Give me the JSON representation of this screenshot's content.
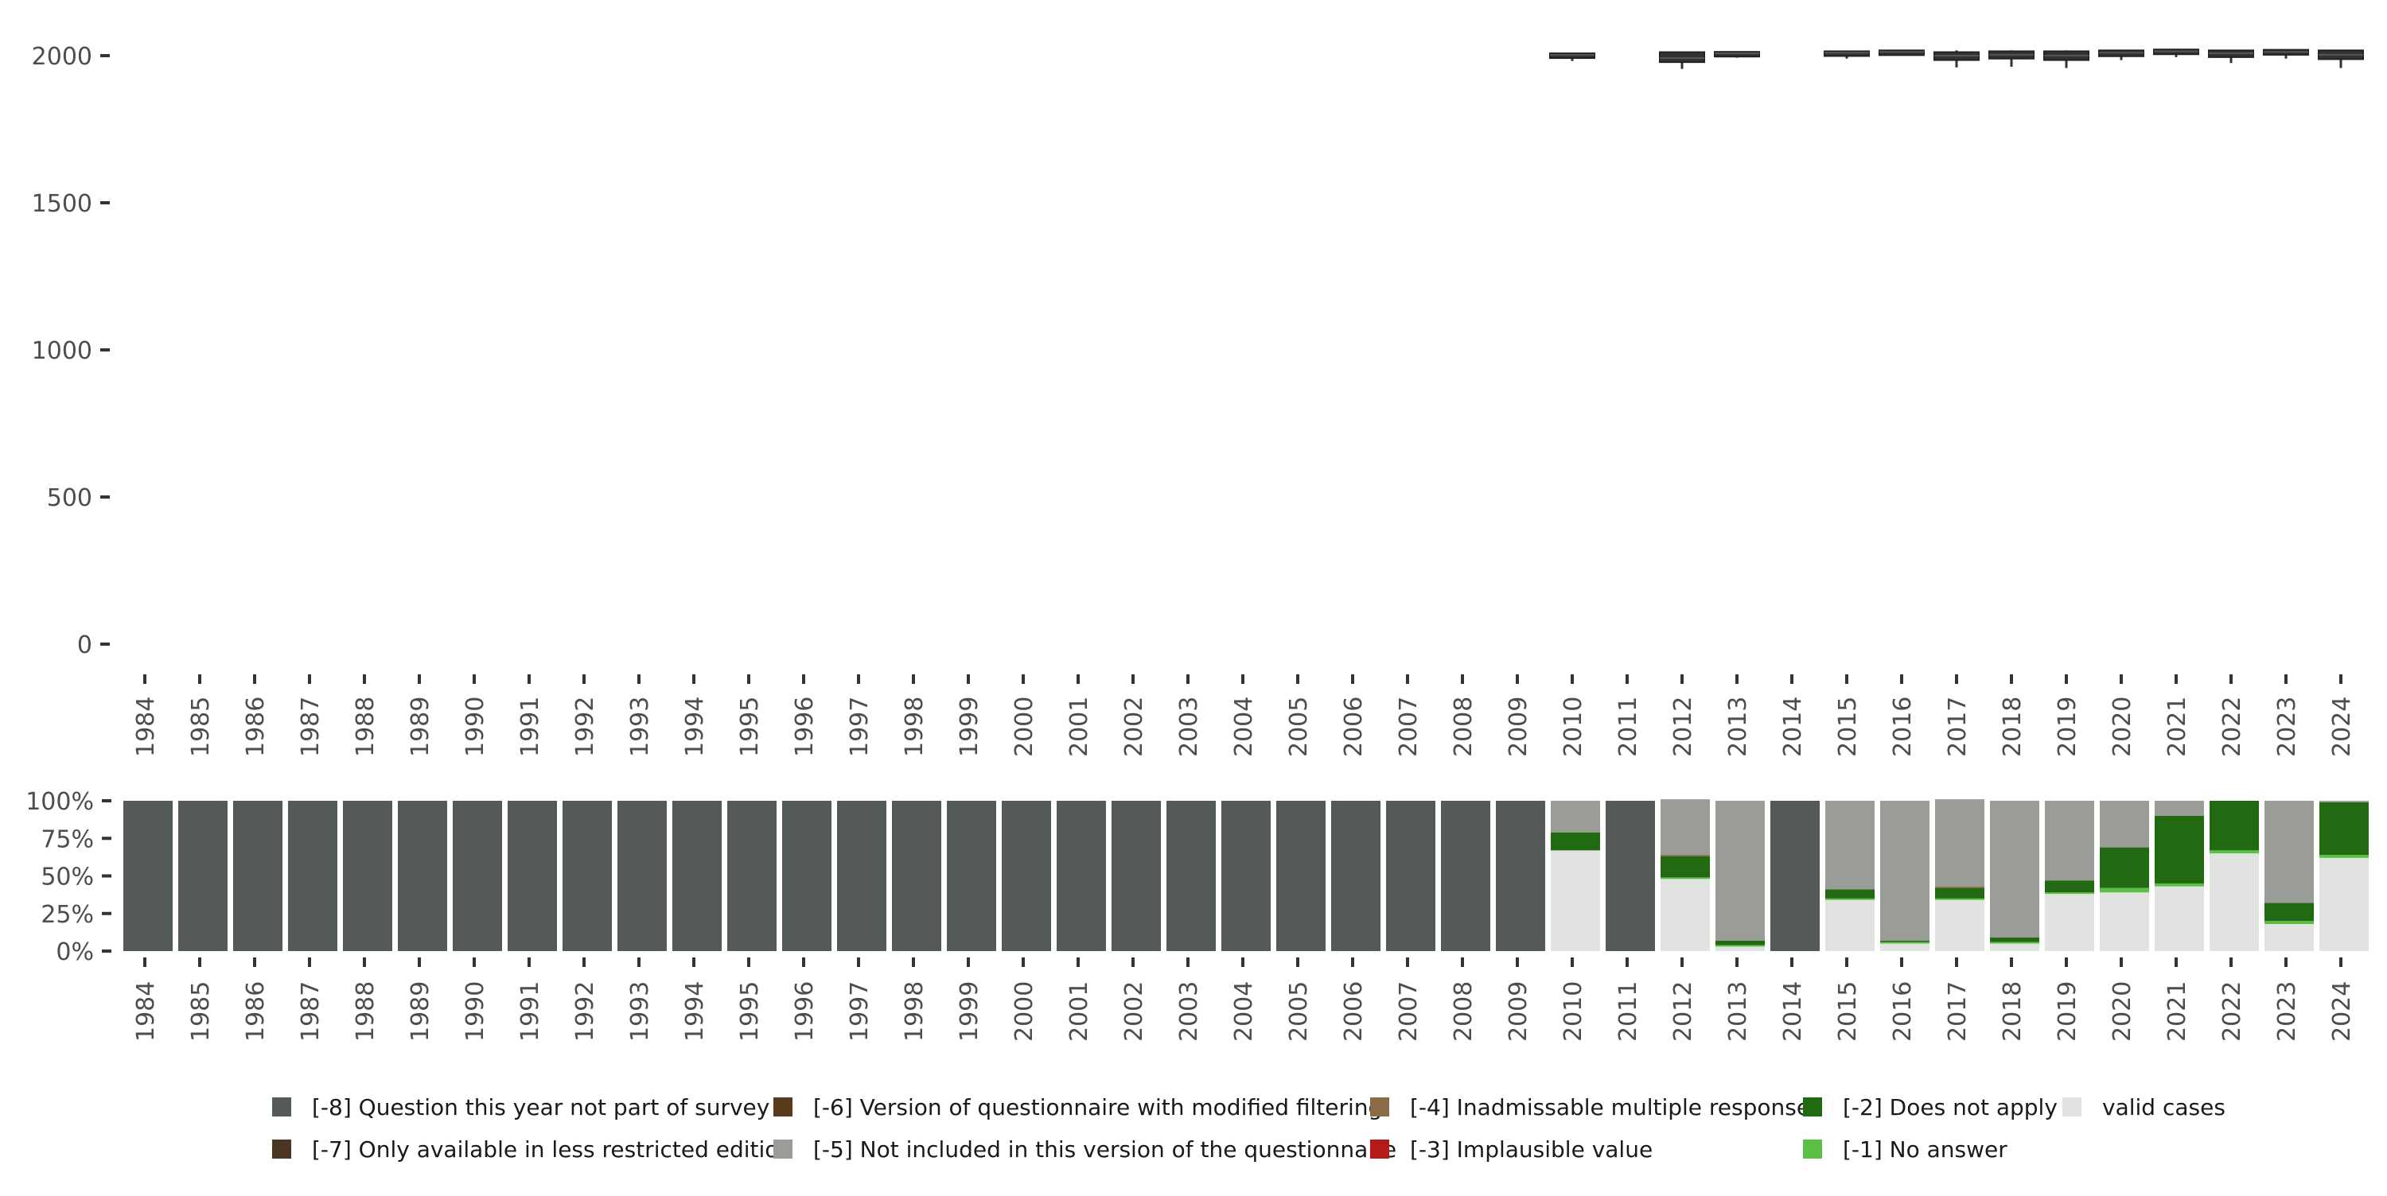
{
  "chart_data": [
    {
      "type": "boxplot",
      "title": "",
      "xlabel": "",
      "ylabel": "",
      "ylim": [
        -20,
        2050
      ],
      "yticks": [
        0,
        500,
        1000,
        1500,
        2000
      ],
      "categories": [
        "1984",
        "1985",
        "1986",
        "1987",
        "1988",
        "1989",
        "1990",
        "1991",
        "1992",
        "1993",
        "1994",
        "1995",
        "1996",
        "1997",
        "1998",
        "1999",
        "2000",
        "2001",
        "2002",
        "2003",
        "2004",
        "2005",
        "2006",
        "2007",
        "2008",
        "2009",
        "2010",
        "2011",
        "2012",
        "2013",
        "2014",
        "2015",
        "2016",
        "2017",
        "2018",
        "2019",
        "2020",
        "2021",
        "2022",
        "2023",
        "2024"
      ],
      "boxes": [
        {
          "year": "2010",
          "q1": 1995,
          "median": 2003,
          "q3": 2008,
          "whisker_low": 1982,
          "whisker_high": 2008
        },
        {
          "year": "2012",
          "q1": 1978,
          "median": 1992,
          "q3": 2012,
          "whisker_low": 1955,
          "whisker_high": 2012
        },
        {
          "year": "2013",
          "q1": 1998,
          "median": 2008,
          "q3": 2013,
          "whisker_low": 1993,
          "whisker_high": 2013
        },
        {
          "year": "2015",
          "q1": 2000,
          "median": 2010,
          "q3": 2015,
          "whisker_low": 1990,
          "whisker_high": 2015
        },
        {
          "year": "2016",
          "q1": 2005,
          "median": 2013,
          "q3": 2018,
          "whisker_low": 2000,
          "whisker_high": 2018
        },
        {
          "year": "2017",
          "q1": 1985,
          "median": 2000,
          "q3": 2012,
          "whisker_low": 1960,
          "whisker_high": 2018
        },
        {
          "year": "2018",
          "q1": 1990,
          "median": 2003,
          "q3": 2015,
          "whisker_low": 1962,
          "whisker_high": 2018
        },
        {
          "year": "2019",
          "q1": 1985,
          "median": 2000,
          "q3": 2015,
          "whisker_low": 1958,
          "whisker_high": 2018
        },
        {
          "year": "2020",
          "q1": 1998,
          "median": 2010,
          "q3": 2018,
          "whisker_low": 1985,
          "whisker_high": 2020
        },
        {
          "year": "2021",
          "q1": 2005,
          "median": 2015,
          "q3": 2021,
          "whisker_low": 1995,
          "whisker_high": 2021
        },
        {
          "year": "2022",
          "q1": 1995,
          "median": 2008,
          "q3": 2018,
          "whisker_low": 1975,
          "whisker_high": 2020
        },
        {
          "year": "2023",
          "q1": 2003,
          "median": 2013,
          "q3": 2020,
          "whisker_low": 1990,
          "whisker_high": 2021
        },
        {
          "year": "2024",
          "q1": 1988,
          "median": 2003,
          "q3": 2018,
          "whisker_low": 1958,
          "whisker_high": 2020
        }
      ]
    },
    {
      "type": "stacked-bar",
      "title": "",
      "xlabel": "",
      "ylabel": "",
      "ylim": [
        0,
        100
      ],
      "yticks": [
        0,
        25,
        50,
        75,
        100
      ],
      "ytick_labels": [
        "0%",
        "25%",
        "50%",
        "75%",
        "100%"
      ],
      "categories": [
        "1984",
        "1985",
        "1986",
        "1987",
        "1988",
        "1989",
        "1990",
        "1991",
        "1992",
        "1993",
        "1994",
        "1995",
        "1996",
        "1997",
        "1998",
        "1999",
        "2000",
        "2001",
        "2002",
        "2003",
        "2004",
        "2005",
        "2006",
        "2007",
        "2008",
        "2009",
        "2010",
        "2011",
        "2012",
        "2013",
        "2014",
        "2015",
        "2016",
        "2017",
        "2018",
        "2019",
        "2020",
        "2021",
        "2022",
        "2023",
        "2024"
      ],
      "stack_order": [
        "valid",
        "m1",
        "m2",
        "m3",
        "m4",
        "m5",
        "m6",
        "m7",
        "m8"
      ],
      "series": [
        {
          "key": "m8",
          "name": "[-8] Question this year not part of survey",
          "color": "#545b56",
          "values": [
            100,
            100,
            100,
            100,
            100,
            100,
            100,
            100,
            100,
            100,
            100,
            100,
            100,
            100,
            100,
            100,
            100,
            100,
            100,
            100,
            100,
            100,
            100,
            100,
            100,
            100,
            0,
            100,
            0,
            0,
            100,
            0,
            0,
            0,
            0,
            0,
            0,
            0,
            0,
            0,
            0
          ]
        },
        {
          "key": "m7",
          "name": "[-7] Only available in less restricted edition",
          "color": "#4a3520",
          "values": [
            0,
            0,
            0,
            0,
            0,
            0,
            0,
            0,
            0,
            0,
            0,
            0,
            0,
            0,
            0,
            0,
            0,
            0,
            0,
            0,
            0,
            0,
            0,
            0,
            0,
            0,
            0,
            0,
            0,
            0,
            0,
            0,
            0,
            0,
            0,
            0,
            0,
            0,
            0,
            0,
            0
          ]
        },
        {
          "key": "m6",
          "name": "[-6] Version of questionnaire with modified filtering",
          "color": "#5a3a1c",
          "values": [
            0,
            0,
            0,
            0,
            0,
            0,
            0,
            0,
            0,
            0,
            0,
            0,
            0,
            0,
            0,
            0,
            0,
            0,
            0,
            0,
            0,
            0,
            0,
            0,
            0,
            0,
            0,
            0,
            0,
            0,
            0,
            0,
            0,
            0,
            0,
            0,
            0,
            0,
            0,
            0,
            0
          ]
        },
        {
          "key": "m5",
          "name": "[-5] Not included in this version of the questionnaire",
          "color": "#999c97",
          "values": [
            0,
            0,
            0,
            0,
            0,
            0,
            0,
            0,
            0,
            0,
            0,
            0,
            0,
            0,
            0,
            0,
            0,
            0,
            0,
            0,
            0,
            0,
            0,
            0,
            0,
            0,
            21,
            0,
            37,
            93,
            0,
            59,
            93,
            58,
            91,
            53,
            31,
            10,
            0,
            68,
            1
          ]
        },
        {
          "key": "m4",
          "name": "[-4] Inadmissable multiple response",
          "color": "#8c6b47",
          "values": [
            0,
            0,
            0,
            0,
            0,
            0,
            0,
            0,
            0,
            0,
            0,
            0,
            0,
            0,
            0,
            0,
            0,
            0,
            0,
            0,
            0,
            0,
            0,
            0,
            0,
            0,
            0,
            0,
            1,
            0,
            0,
            0,
            0,
            1,
            0,
            0,
            0,
            0,
            0,
            0,
            0
          ]
        },
        {
          "key": "m3",
          "name": "[-3] Implausible value",
          "color": "#b51a1a",
          "values": [
            0,
            0,
            0,
            0,
            0,
            0,
            0,
            0,
            0,
            0,
            0,
            0,
            0,
            0,
            0,
            0,
            0,
            0,
            0,
            0,
            0,
            0,
            0,
            0,
            0,
            0,
            0,
            0,
            0,
            0,
            0,
            0,
            0,
            0,
            0,
            0,
            0,
            0,
            0,
            0,
            0
          ]
        },
        {
          "key": "m2",
          "name": "[-2] Does not apply",
          "color": "#216a11",
          "values": [
            0,
            0,
            0,
            0,
            0,
            0,
            0,
            0,
            0,
            0,
            0,
            0,
            0,
            0,
            0,
            0,
            0,
            0,
            0,
            0,
            0,
            0,
            0,
            0,
            0,
            0,
            12,
            0,
            14,
            3,
            0,
            6,
            1,
            7,
            3,
            8,
            27,
            45,
            33,
            12,
            35
          ]
        },
        {
          "key": "m1",
          "name": "[-1] No answer",
          "color": "#5cbf45",
          "values": [
            0,
            0,
            0,
            0,
            0,
            0,
            0,
            0,
            0,
            0,
            0,
            0,
            0,
            0,
            0,
            0,
            0,
            0,
            0,
            0,
            0,
            0,
            0,
            0,
            0,
            0,
            0,
            0,
            1,
            1,
            0,
            1,
            1,
            1,
            1,
            1,
            3,
            2,
            2,
            2,
            2
          ]
        },
        {
          "key": "valid",
          "name": "valid cases",
          "color": "#e0e3df",
          "values": [
            0,
            0,
            0,
            0,
            0,
            0,
            0,
            0,
            0,
            0,
            0,
            0,
            0,
            0,
            0,
            0,
            0,
            0,
            0,
            0,
            0,
            0,
            0,
            0,
            0,
            0,
            67,
            0,
            48,
            3,
            0,
            34,
            5,
            34,
            5,
            38,
            39,
            43,
            65,
            18,
            62
          ]
        }
      ],
      "legend_position": "bottom",
      "legend_order": [
        "m8",
        "m7",
        "m6",
        "m5",
        "m4",
        "m3",
        "m2",
        "m1",
        "valid"
      ]
    }
  ]
}
